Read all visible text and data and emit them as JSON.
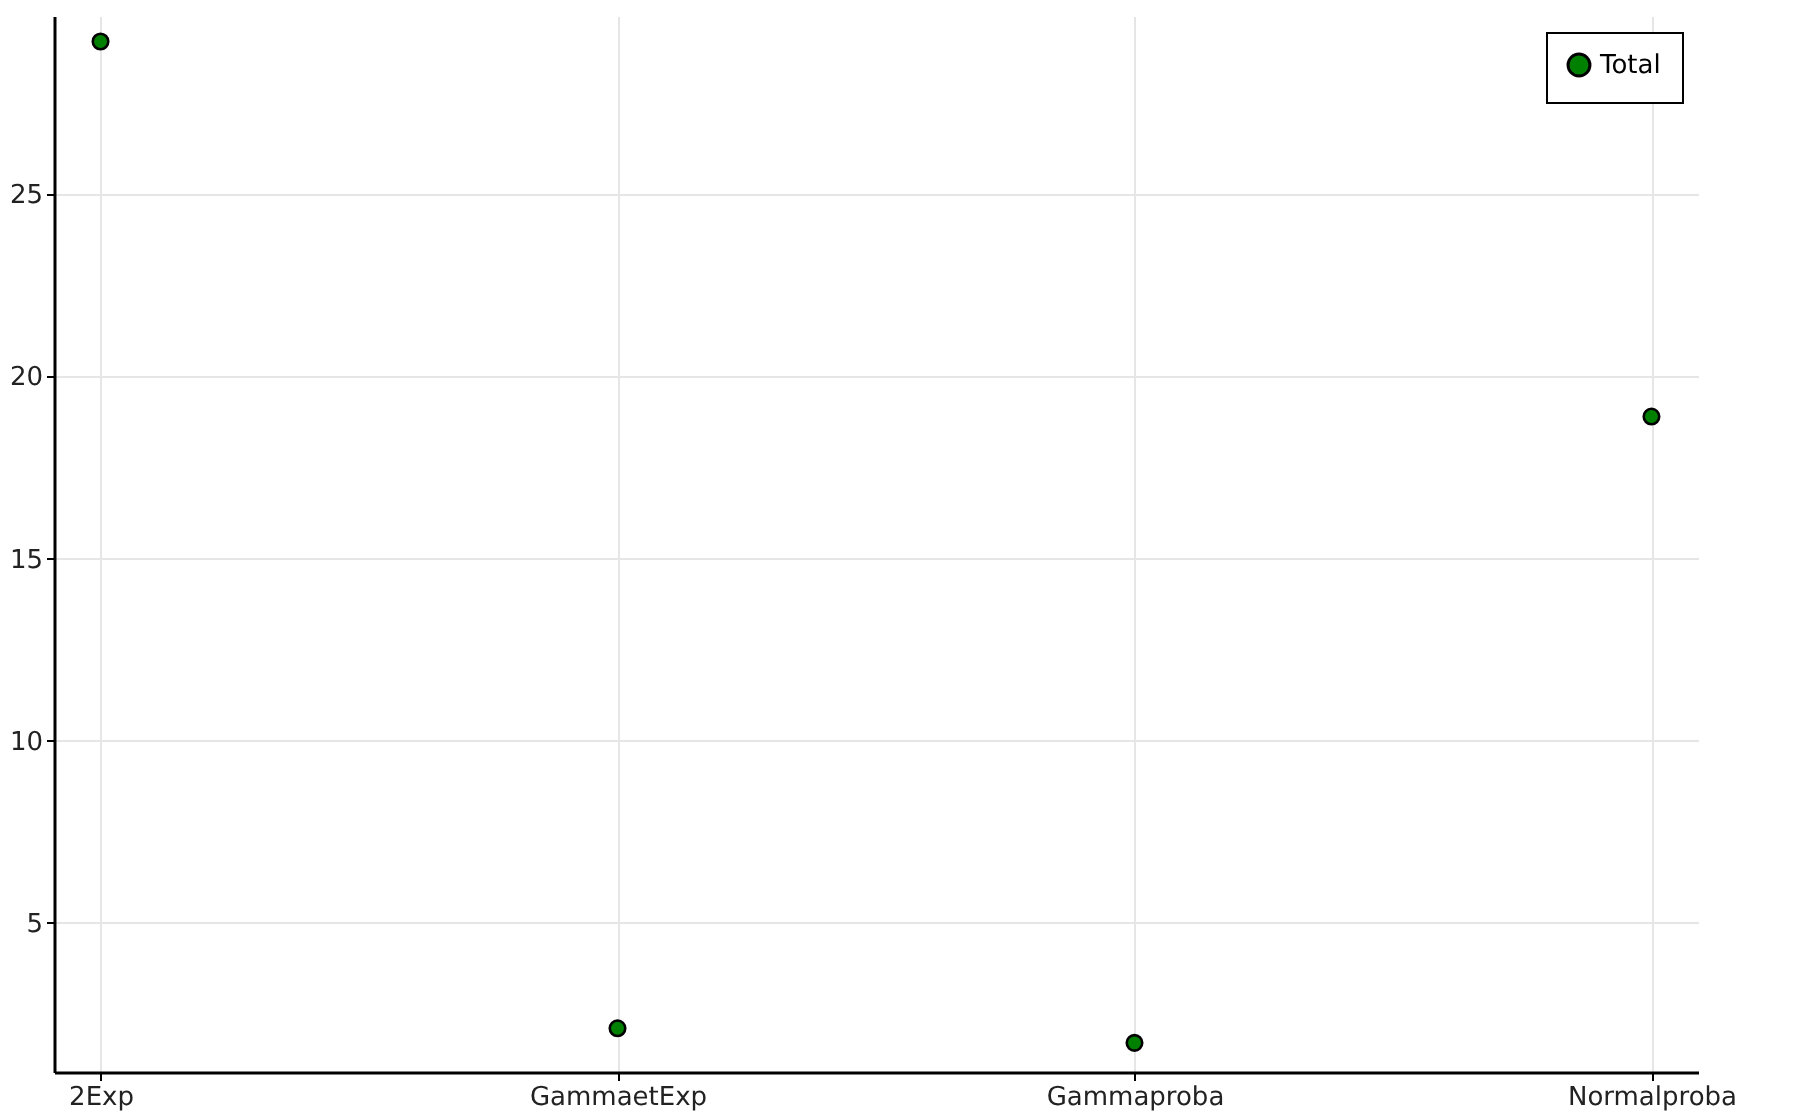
{
  "chart_data": {
    "type": "scatter",
    "categories": [
      "2Exp",
      "GammaetExp",
      "Gammaproba",
      "Normalproba"
    ],
    "series": [
      {
        "name": "Total",
        "color": "#008000",
        "values": [
          29.2,
          2.1,
          1.7,
          18.9
        ]
      }
    ],
    "ylim": [
      0.9,
      29.9
    ],
    "yticks": [
      5,
      10,
      15,
      20,
      25
    ],
    "grid": true,
    "legend": "top right",
    "marker": "circle"
  }
}
